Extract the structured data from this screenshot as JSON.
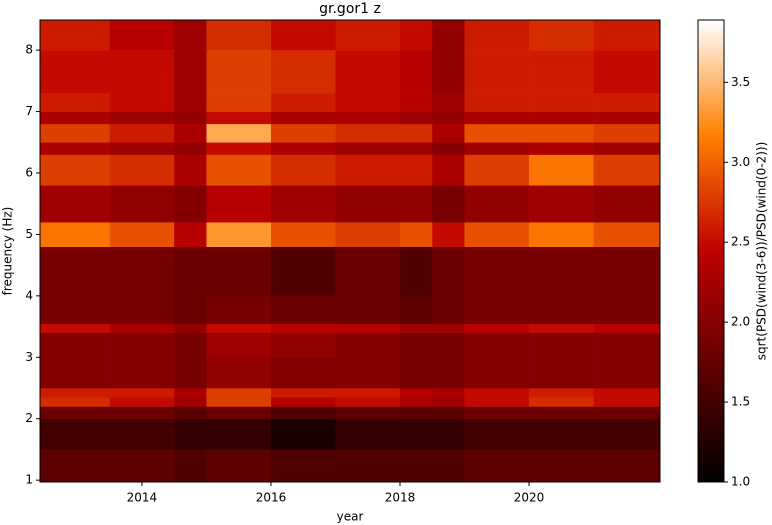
{
  "chart_data": {
    "type": "heatmap",
    "title": "gr.gor1 z",
    "x_label": "year",
    "y_label": "frequency (Hz)",
    "colorbar_label": "sqrt(PSD(wind(3-6))/PSD(wind(0-2)))",
    "colormap": [
      "#000000",
      "#600000",
      "#bf0000",
      "#ff8000",
      "#ffffff"
    ],
    "xlim": [
      2012.42,
      2022.03
    ],
    "xticks": [
      2014,
      2016,
      2018,
      2020
    ],
    "ylim": [
      0.97,
      8.49
    ],
    "yticks": [
      1,
      2,
      3,
      4,
      5,
      6,
      7,
      8
    ],
    "clim": [
      1.0,
      3.89
    ],
    "cticks": [
      {
        "value": 1.0,
        "label": "1.0"
      },
      1.5,
      {
        "value": 2.0,
        "label": "2.0"
      },
      2.5,
      {
        "value": 3.0,
        "label": "3.0"
      },
      3.5
    ],
    "x_edges": [
      2012.42,
      2013.5,
      2014.5,
      2015,
      2016,
      2017,
      2018,
      2018.5,
      2019,
      2020,
      2021,
      2022.03
    ],
    "y_edges": [
      0.97,
      1.5,
      2.0,
      2.2,
      2.35,
      2.5,
      3.0,
      3.4,
      3.55,
      4.0,
      4.8,
      5.2,
      5.8,
      6.3,
      6.5,
      6.8,
      7.0,
      7.3,
      8.0,
      8.49
    ],
    "values": [
      [
        1.7,
        1.7,
        1.6,
        1.7,
        1.6,
        1.6,
        1.6,
        1.6,
        1.7,
        1.7,
        1.7
      ],
      [
        1.5,
        1.5,
        1.4,
        1.4,
        1.2,
        1.4,
        1.4,
        1.4,
        1.5,
        1.5,
        1.5
      ],
      [
        1.8,
        1.8,
        1.7,
        1.8,
        1.6,
        1.7,
        1.7,
        1.7,
        1.8,
        1.8,
        1.8
      ],
      [
        2.7,
        2.5,
        2.2,
        2.8,
        2.4,
        2.5,
        2.3,
        2.2,
        2.5,
        2.7,
        2.5
      ],
      [
        2.6,
        2.6,
        2.3,
        2.8,
        2.6,
        2.6,
        2.4,
        2.3,
        2.5,
        2.6,
        2.5
      ],
      [
        2.0,
        2.0,
        1.9,
        2.1,
        2.0,
        2.0,
        1.9,
        1.9,
        2.0,
        2.0,
        2.0
      ],
      [
        2.0,
        2.0,
        1.9,
        2.2,
        2.1,
        2.0,
        1.9,
        1.9,
        2.0,
        2.0,
        2.0
      ],
      [
        2.5,
        2.3,
        2.1,
        2.5,
        2.4,
        2.4,
        2.2,
        2.2,
        2.4,
        2.5,
        2.4
      ],
      [
        1.9,
        1.9,
        1.8,
        1.9,
        1.8,
        1.8,
        1.7,
        1.8,
        1.9,
        1.9,
        1.9
      ],
      [
        1.9,
        1.9,
        1.8,
        1.8,
        1.6,
        1.8,
        1.6,
        1.8,
        1.9,
        1.9,
        1.9
      ],
      [
        3.1,
        2.9,
        2.4,
        3.3,
        2.9,
        2.8,
        2.9,
        2.5,
        2.9,
        3.1,
        2.9
      ],
      [
        2.2,
        2.1,
        2.0,
        2.4,
        2.2,
        2.1,
        2.1,
        1.9,
        2.1,
        2.2,
        2.1
      ],
      [
        2.8,
        2.7,
        2.3,
        2.9,
        2.7,
        2.6,
        2.6,
        2.3,
        2.8,
        3.1,
        2.8
      ],
      [
        2.3,
        2.2,
        2.1,
        2.5,
        2.3,
        2.2,
        2.2,
        2.0,
        2.2,
        2.3,
        2.2
      ],
      [
        2.8,
        2.6,
        2.3,
        3.4,
        2.8,
        2.7,
        2.7,
        2.3,
        2.9,
        2.9,
        2.8
      ],
      [
        2.3,
        2.2,
        2.1,
        2.5,
        2.3,
        2.3,
        2.2,
        2.1,
        2.3,
        2.3,
        2.3
      ],
      [
        2.6,
        2.5,
        2.2,
        2.8,
        2.6,
        2.5,
        2.4,
        2.2,
        2.6,
        2.6,
        2.6
      ],
      [
        2.5,
        2.5,
        2.2,
        2.8,
        2.7,
        2.5,
        2.4,
        2.1,
        2.6,
        2.6,
        2.5
      ],
      [
        2.6,
        2.4,
        2.2,
        2.7,
        2.5,
        2.6,
        2.5,
        2.1,
        2.6,
        2.7,
        2.6
      ]
    ]
  }
}
